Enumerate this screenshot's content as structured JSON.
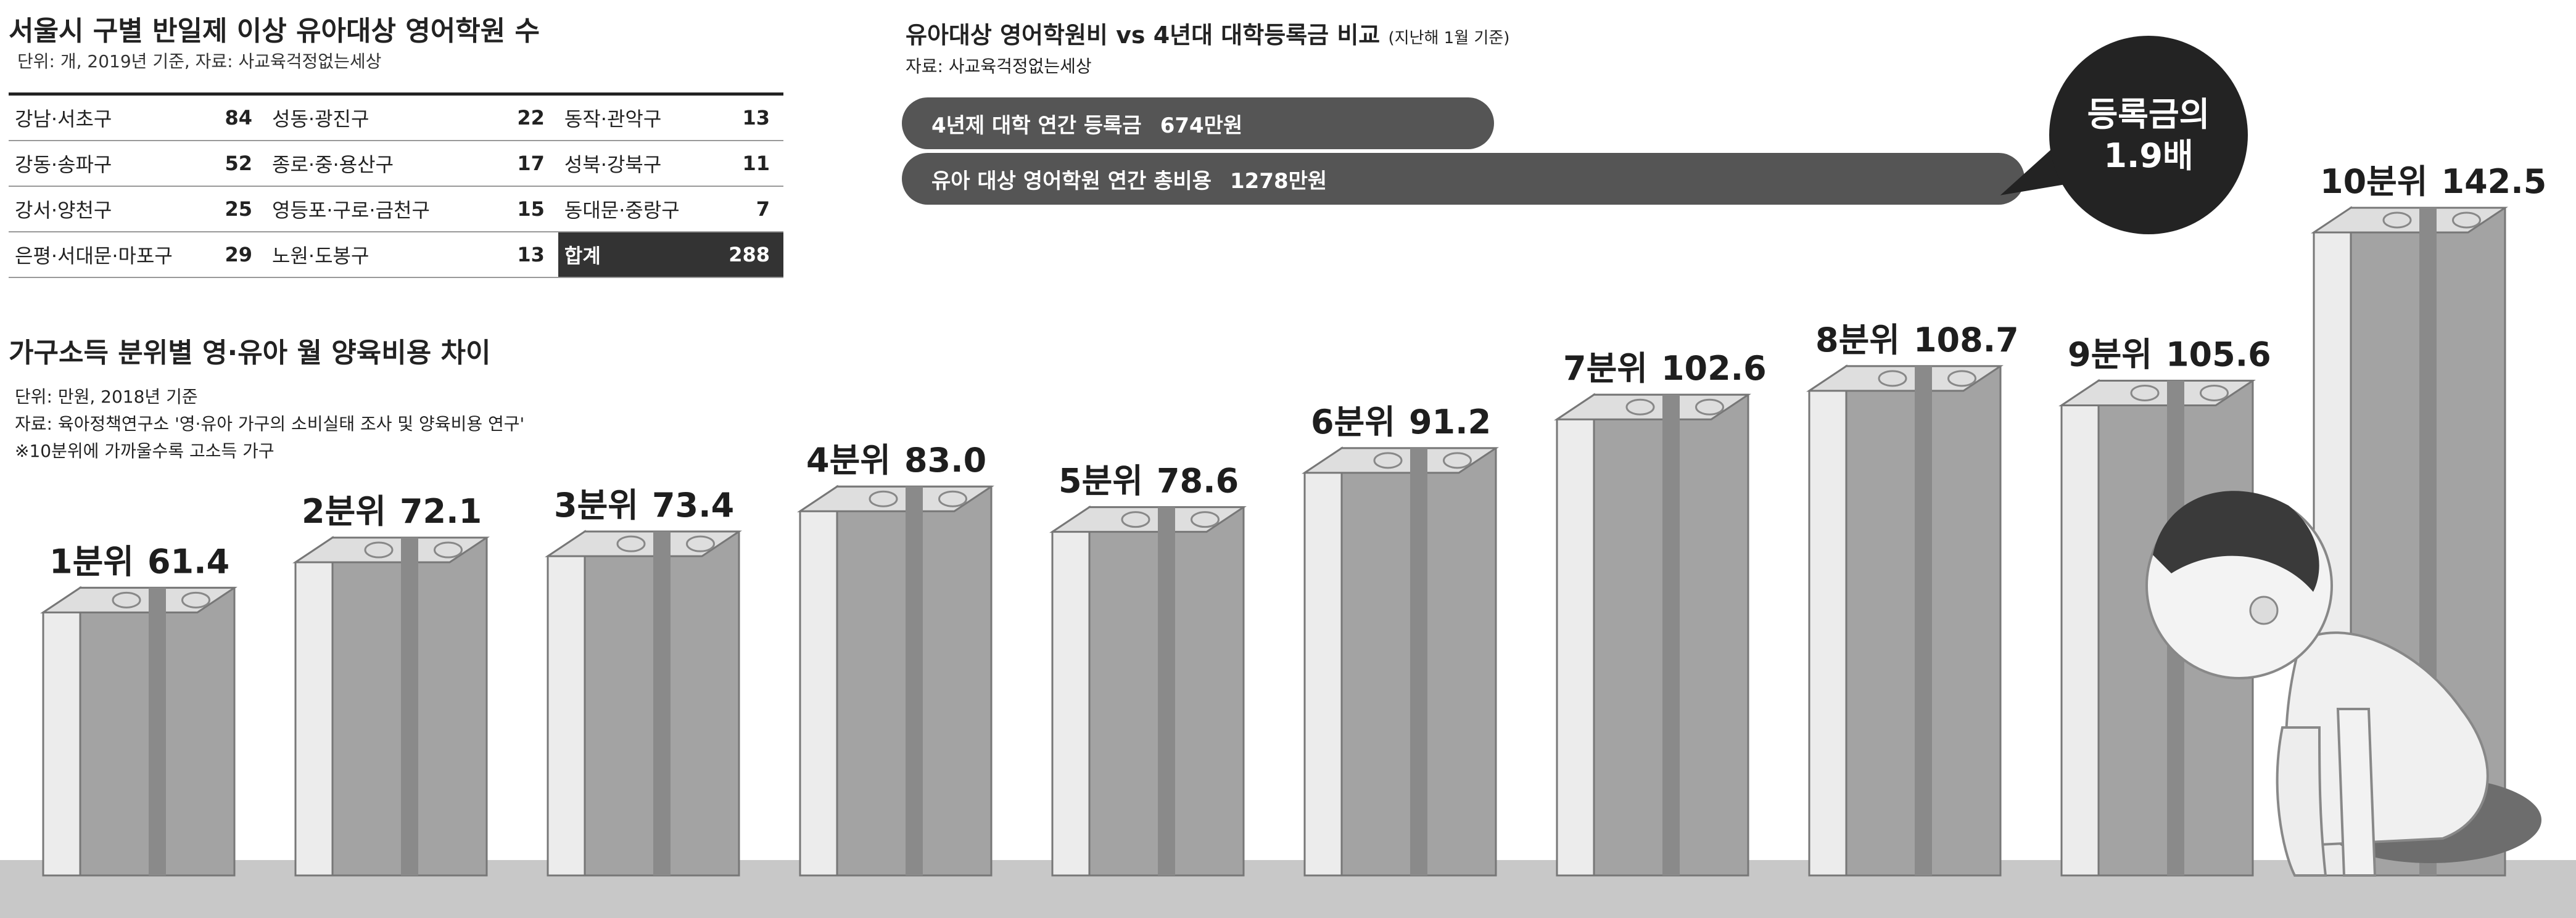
{
  "table": {
    "title": "서울시 구별 반일제 이상 유아대상 영어학원 수",
    "subtitle": "단위: 개, 2019년 기준, 자료: 사교육걱정없는세상",
    "rows": [
      [
        {
          "district": "강남·서초구",
          "count": "84"
        },
        {
          "district": "성동·광진구",
          "count": "22"
        },
        {
          "district": "동작·관악구",
          "count": "13"
        }
      ],
      [
        {
          "district": "강동·송파구",
          "count": "52"
        },
        {
          "district": "종로·중·용산구",
          "count": "17"
        },
        {
          "district": "성북·강북구",
          "count": "11"
        }
      ],
      [
        {
          "district": "강서·양천구",
          "count": "25"
        },
        {
          "district": "영등포·구로·금천구",
          "count": "15"
        },
        {
          "district": "동대문·중랑구",
          "count": "7"
        }
      ],
      [
        {
          "district": "은평·서대문·마포구",
          "count": "29"
        },
        {
          "district": "노원·도봉구",
          "count": "13"
        },
        {
          "district": "합계",
          "count": "288"
        }
      ]
    ]
  },
  "comparison": {
    "title": "유아대상 영어학원비 vs 4년대 대학등록금 비교",
    "title_note": "(지난해 1월 기준)",
    "source": "자료: 사교육걱정없는세상",
    "items": [
      {
        "label": "4년제 대학 연간 등록금",
        "value": "674만원",
        "amount": 674
      },
      {
        "label": "유아 대상 영어학원 연간 총비용",
        "value": "1278만원",
        "amount": 1278
      }
    ],
    "callout_line1": "등록금의",
    "callout_line2": "1.9배"
  },
  "chart_data": {
    "type": "bar",
    "title": "가구소득 분위별 영·유아 월 양육비용 차이",
    "notes": [
      "단위: 만원, 2018년 기준",
      "자료: 육아정책연구소 '영·유아 가구의 소비실태 조사 및 양육비용 연구'",
      "※10분위에 가까울수록 고소득 가구"
    ],
    "categories": [
      "1분위",
      "2분위",
      "3분위",
      "4분위",
      "5분위",
      "6분위",
      "7분위",
      "8분위",
      "9분위",
      "10분위"
    ],
    "values": [
      61.4,
      72.1,
      73.4,
      83.0,
      78.6,
      91.2,
      102.6,
      108.7,
      105.6,
      142.5
    ],
    "value_labels": [
      "61.4",
      "72.1",
      "73.4",
      "83.0",
      "78.6",
      "91.2",
      "102.6",
      "108.7",
      "105.6",
      "142.5"
    ],
    "colors": {
      "bar_front": "#a3a3a3",
      "bar_side": "#ececec",
      "bar_top": "#dedede",
      "band": "#8a8a8a",
      "floor": "#c8c8c8"
    }
  }
}
